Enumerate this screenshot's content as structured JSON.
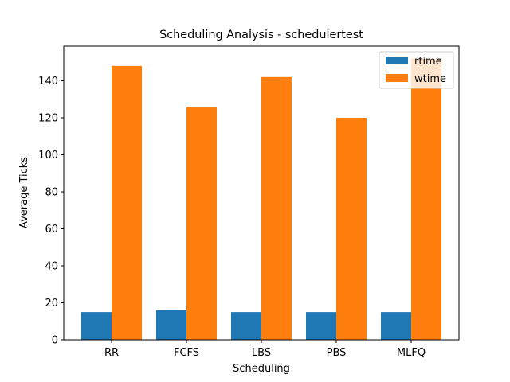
{
  "chart_data": {
    "type": "bar",
    "title": "Scheduling Analysis - schedulertest",
    "xlabel": "Scheduling",
    "ylabel": "Average Ticks",
    "categories": [
      "RR",
      "FCFS",
      "LBS",
      "PBS",
      "MLFQ"
    ],
    "series": [
      {
        "name": "rtime",
        "color": "#1f77b4",
        "values": [
          15,
          16,
          15,
          15,
          15
        ]
      },
      {
        "name": "wtime",
        "color": "#ff7f0e",
        "values": [
          148,
          126,
          142,
          120,
          152
        ]
      }
    ],
    "ylim": [
      0,
      158.7
    ],
    "yticks": [
      0,
      20,
      40,
      60,
      80,
      100,
      120,
      140
    ],
    "legend_position": "top-right",
    "grid": false
  }
}
